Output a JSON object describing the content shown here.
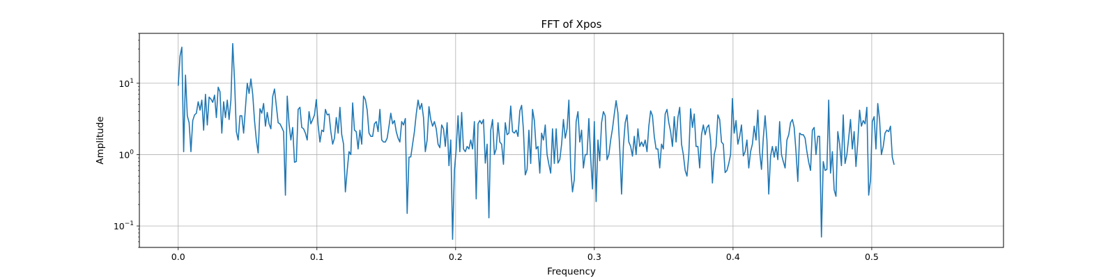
{
  "chart_data": {
    "type": "line",
    "title": "FFT of Xpos",
    "xlabel": "Frequency",
    "ylabel": "Amplitude",
    "xscale": "linear",
    "yscale": "log",
    "xlim": [
      -0.028,
      0.595
    ],
    "ylim": [
      0.05,
      50
    ],
    "grid": true,
    "x_ticks": [
      {
        "value": 0.0,
        "label": "0.0"
      },
      {
        "value": 0.1,
        "label": "0.1"
      },
      {
        "value": 0.2,
        "label": "0.2"
      },
      {
        "value": 0.3,
        "label": "0.3"
      },
      {
        "value": 0.4,
        "label": "0.4"
      },
      {
        "value": 0.5,
        "label": "0.5"
      }
    ],
    "y_ticks": [
      {
        "value": 0.1,
        "base": "10",
        "exp": "−1"
      },
      {
        "value": 1,
        "base": "10",
        "exp": "0"
      },
      {
        "value": 10,
        "base": "10",
        "exp": "1"
      }
    ],
    "line_color": "#1f77b4",
    "series": [
      {
        "x_start": 0.0,
        "x_step": 0.00131,
        "values": [
          9.2,
          24,
          32,
          1.1,
          13,
          3.5,
          2.8,
          1.1,
          3,
          3.6,
          3.8,
          5.5,
          4.2,
          5.8,
          2.2,
          7,
          2.6,
          6.4,
          6,
          5.4,
          6.8,
          3.3,
          8.8,
          7.6,
          2,
          5.5,
          3.3,
          5.8,
          3.1,
          5.8,
          36,
          11,
          2.1,
          1.6,
          3.5,
          3.5,
          2,
          4.5,
          10,
          7.2,
          11.5,
          7,
          3,
          1.6,
          1.05,
          4.4,
          3.8,
          5.2,
          2.5,
          3.9,
          2.7,
          2.3,
          6.5,
          8.3,
          4.8,
          2.8,
          2.7,
          2.4,
          2.1,
          0.27,
          6.6,
          2.7,
          1.6,
          2.4,
          0.78,
          0.8,
          4.3,
          4.6,
          2.4,
          2.3,
          2,
          1.6,
          4,
          2.7,
          3.1,
          3.6,
          5.9,
          2.6,
          1.5,
          2.2,
          2.1,
          4.3,
          3.6,
          3.7,
          2.1,
          1.4,
          1.7,
          3.3,
          2,
          4.6,
          1.9,
          1.4,
          0.3,
          0.6,
          1.1,
          1,
          5.3,
          2.2,
          2.1,
          1.2,
          2.2,
          1.4,
          6.6,
          5.9,
          4.2,
          2,
          1.8,
          1.8,
          2.7,
          2.9,
          2.1,
          4.3,
          1.6,
          1.5,
          1.5,
          1.7,
          2.5,
          3.8,
          2.7,
          3,
          2.1,
          1.7,
          1.5,
          2.9,
          2.6,
          3.2,
          0.15,
          0.92,
          0.93,
          1.4,
          2.1,
          3.7,
          5.8,
          4.3,
          5.2,
          3.3,
          1.1,
          1.6,
          4.7,
          3.1,
          2.5,
          2.9,
          2.3,
          1.4,
          1.25,
          2.6,
          2.3,
          1.3,
          2.8,
          0.7,
          1.6,
          0.065,
          0.6,
          1.2,
          3.5,
          1.1,
          3.9,
          1.2,
          1.1,
          1.3,
          1.2,
          1.6,
          1.2,
          2.9,
          0.24,
          2.7,
          3,
          2.7,
          3.1,
          0.76,
          1.4,
          0.13,
          2.2,
          3.1,
          1,
          1.2,
          2.8,
          1.5,
          1.4,
          0.73,
          2.8,
          1.9,
          2,
          4.8,
          2.1,
          2,
          2.2,
          1.8,
          4.1,
          4.9,
          2.2,
          0.52,
          0.62,
          2.2,
          0.75,
          4.3,
          3,
          1.2,
          1.3,
          0.55,
          2,
          1.6,
          2.6,
          1,
          0.73,
          0.55,
          2.3,
          0.75,
          2.3,
          0.76,
          0.85,
          1.4,
          3.1,
          1.7,
          2.3,
          5.8,
          0.65,
          0.3,
          0.45,
          2.9,
          4,
          1.5,
          2.2,
          0.65,
          1,
          1,
          3.2,
          0.9,
          0.33,
          2.9,
          0.22,
          1.6,
          0.82,
          2.8,
          4,
          3.5,
          0.85,
          1,
          1.6,
          2.3,
          3.7,
          5.7,
          3.8,
          1.2,
          0.28,
          1.3,
          2.8,
          3.6,
          1.5,
          1.3,
          0.95,
          1.8,
          1,
          2.3,
          1.3,
          1.5,
          1.3,
          1.6,
          1.1,
          2.5,
          4.1,
          3.5,
          1.8,
          1.2,
          1.2,
          0.65,
          1.4,
          1.2,
          3.7,
          4.3,
          2.8,
          2.1,
          1.3,
          3.4,
          1.5,
          3.3,
          4.6,
          1.4,
          1,
          0.6,
          0.5,
          1,
          4.4,
          2.4,
          3.7,
          1.3,
          1.3,
          0.65,
          1.9,
          2.6,
          1.9,
          2.4,
          2.6,
          1.6,
          0.4,
          1,
          1.3,
          3.6,
          3.1,
          1.5,
          1.4,
          0.56,
          0.6,
          0.75,
          1,
          6.1,
          2,
          3,
          1.4,
          1.8,
          2.6,
          0.96,
          1.1,
          1.6,
          0.65,
          1.1,
          1.4,
          2.5,
          1.6,
          4.2,
          1.1,
          0.62,
          1.7,
          3.5,
          1.6,
          0.28,
          0.95,
          1.3,
          0.92,
          1.3,
          0.85,
          2.9,
          1,
          0.8,
          0.65,
          1.6,
          1.9,
          2.8,
          3.1,
          2.4,
          1.1,
          0.42,
          2,
          1.9,
          1.9,
          1.7,
          1.1,
          0.78,
          0.6,
          2.2,
          2.4,
          1,
          1.8,
          1.8,
          0.07,
          0.8,
          0.6,
          0.62,
          5.8,
          0.55,
          1.1,
          0.32,
          0.26,
          2.1,
          1.4,
          0.7,
          3.6,
          0.75,
          1,
          1.7,
          3.1,
          1.2,
          2.1,
          0.68,
          1.5,
          4.2,
          2.5,
          3,
          2.7,
          4.6,
          0.27,
          0.44,
          2.9,
          3.4,
          1.2,
          5.2,
          3.1,
          1,
          1.3,
          2,
          2.2,
          2.1,
          2.5,
          0.92,
          0.72
        ]
      }
    ]
  }
}
